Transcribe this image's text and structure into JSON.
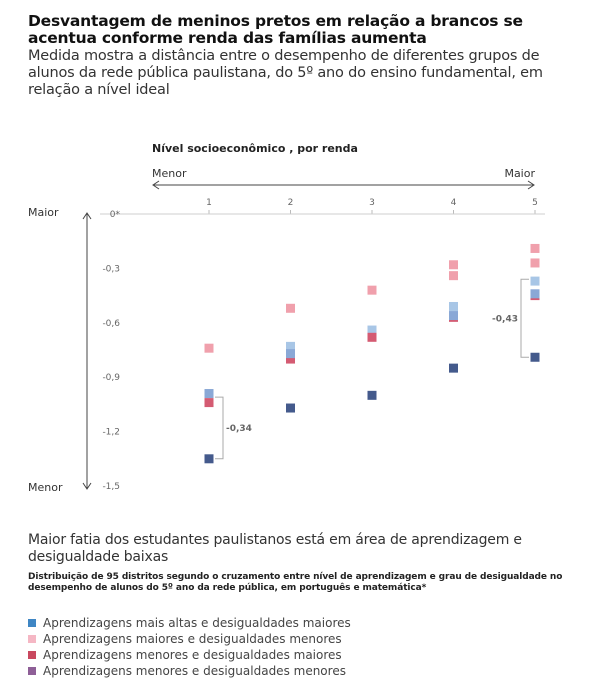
{
  "header": {
    "title": "Desvantagem de meninos pretos em relação a brancos se acentua conforme renda das famílias aumenta",
    "subtitle": "Medida mostra a distância entre o desempenho de diferentes grupos de alunos da rede pública paulistana, do 5º ano do ensino fundamental, em relação a nível ideal"
  },
  "chart_data": {
    "type": "scatter",
    "title": "Nível socioeconômico , por renda",
    "x_axis": {
      "label_low": "Menor",
      "label_high": "Maior",
      "ticks": [
        "1",
        "2",
        "3",
        "4",
        "5"
      ]
    },
    "y_axis": {
      "label_high": "Maior",
      "label_low": "Menor",
      "ylim": [
        -1.5,
        0
      ],
      "ticks": [
        "0*",
        "-0,3",
        "-0,6",
        "-0,9",
        "-1,2",
        "-1,5"
      ]
    },
    "colors": [
      "#f0a0ac",
      "#a8c6e6",
      "#d45b72",
      "#8aa8d6",
      "#445a8c"
    ],
    "series": [
      {
        "color": "#f0a0ac",
        "x": [
          1,
          2,
          3,
          4,
          5,
          4,
          5
        ],
        "y": [
          -0.74,
          -0.52,
          -0.42,
          -0.28,
          -0.19,
          -0.34,
          -0.27
        ]
      },
      {
        "color": "#a8c6e6",
        "x": [
          2,
          3,
          4,
          5
        ],
        "y": [
          -0.73,
          -0.64,
          -0.51,
          -0.37
        ]
      },
      {
        "color": "#d45b72",
        "x": [
          1,
          2,
          3,
          4,
          5
        ],
        "y": [
          -1.04,
          -0.8,
          -0.68,
          -0.57,
          -0.45
        ]
      },
      {
        "color": "#8aa8d6",
        "x": [
          1,
          2,
          4,
          5
        ],
        "y": [
          -0.99,
          -0.77,
          -0.56,
          -0.44
        ]
      },
      {
        "color": "#445a8c",
        "x": [
          1,
          2,
          3,
          4,
          5
        ],
        "y": [
          -1.35,
          -1.07,
          -1.0,
          -0.85,
          -0.79
        ]
      }
    ],
    "annotations": [
      {
        "text": "-0,34",
        "x": 1,
        "y_top": -1.01,
        "y_bottom": -1.35
      },
      {
        "text": "-0,43",
        "x": 5,
        "y_top": -0.36,
        "y_bottom": -0.79
      }
    ]
  },
  "section2": {
    "title": "Maior fatia dos estudantes paulistanos está em área de aprendizagem e desigualdade baixas",
    "description": "Distribuição de 95 distritos segundo o cruzamento entre nível de aprendizagem e grau de desigualdade no desempenho de alunos do 5º ano da rede pública, em português e matemática*"
  },
  "legend": [
    {
      "label": "Aprendizagens mais altas e desigualdades maiores",
      "color": "#3f86c4"
    },
    {
      "label": "Aprendizagens maiores e desigualdades menores",
      "color": "#f5b7c4"
    },
    {
      "label": "Aprendizagens menores e desigualdades maiores",
      "color": "#c9485f"
    },
    {
      "label": "Aprendizagens menores e desigualdades menores",
      "color": "#8e5f97"
    }
  ]
}
